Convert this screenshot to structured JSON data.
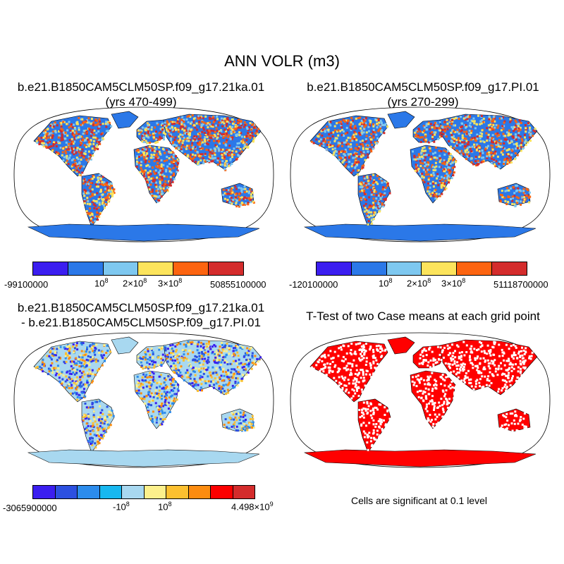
{
  "figure_title": "ANN VOLR (m3)",
  "panels": {
    "p1": {
      "title_line1": "b.e21.B1850CAM5CLM50SP.f09_g17.21ka.01",
      "title_line2": "(yrs 470-499)",
      "colorbar": {
        "colors": [
          "#3b1ef0",
          "#2b78e8",
          "#7ec8f0",
          "#fce45c",
          "#fc6410",
          "#d42c2c"
        ],
        "labels": [
          {
            "base": "-99100000",
            "exp": ""
          },
          {
            "base": "10",
            "exp": "8"
          },
          {
            "base": "2×10",
            "exp": "8"
          },
          {
            "base": "3×10",
            "exp": "8"
          },
          {
            "base": "50855100000",
            "exp": ""
          }
        ]
      }
    },
    "p2": {
      "title_line1": "b.e21.B1850CAM5CLM50SP.f09_g17.PI.01",
      "title_line2": "(yrs 270-299)",
      "colorbar": {
        "colors": [
          "#3b1ef0",
          "#2b78e8",
          "#7ec8f0",
          "#fce45c",
          "#fc6410",
          "#d42c2c"
        ],
        "labels": [
          {
            "base": "-120100000",
            "exp": ""
          },
          {
            "base": "10",
            "exp": "8"
          },
          {
            "base": "2×10",
            "exp": "8"
          },
          {
            "base": "3×10",
            "exp": "8"
          },
          {
            "base": "51118700000",
            "exp": ""
          }
        ]
      }
    },
    "p3": {
      "title_line1": "b.e21.B1850CAM5CLM50SP.f09_g17.21ka.01",
      "title_line2": "- b.e21.B1850CAM5CLM50SP.f09_g17.PI.01",
      "colorbar": {
        "colors": [
          "#3b1ef0",
          "#2c50e0",
          "#2c8cec",
          "#18b8f0",
          "#a8d8f0",
          "#fcf08c",
          "#fcc030",
          "#fc8c10",
          "#fc0000",
          "#d42c2c"
        ],
        "labels": [
          {
            "base": "-3065900000",
            "exp": ""
          },
          {
            "base": "-10",
            "exp": "8"
          },
          {
            "base": "10",
            "exp": "8"
          },
          {
            "base": "4.498×10",
            "exp": "9"
          }
        ]
      }
    },
    "p4": {
      "title": "T-Test of two Case means at each grid point",
      "note": "Cells are significant at 0.1 level",
      "sig_color": "#ff0000"
    }
  },
  "colors": {
    "ocean_bg": "#ffffff",
    "land_outline": "#000000",
    "p1_land": "#2b78e8",
    "p2_land": "#2b78e8",
    "p3_land": "#a8d8f0",
    "p4_land": "#ff0000"
  },
  "chart_data": [
    {
      "type": "heatmap",
      "title": "b.e21.B1850CAM5CLM50SP.f09_g17.21ka.01 (yrs 470-499)",
      "field": "ANN VOLR (m3)",
      "projection": "Robinson",
      "range": [
        -99100000,
        50855100000
      ],
      "colorbar_ticks": [
        "-99100000",
        "10^8",
        "2×10^8",
        "3×10^8",
        "50855100000"
      ]
    },
    {
      "type": "heatmap",
      "title": "b.e21.B1850CAM5CLM50SP.f09_g17.PI.01 (yrs 270-299)",
      "field": "ANN VOLR (m3)",
      "projection": "Robinson",
      "range": [
        -120100000,
        51118700000
      ],
      "colorbar_ticks": [
        "-120100000",
        "10^8",
        "2×10^8",
        "3×10^8",
        "51118700000"
      ]
    },
    {
      "type": "heatmap",
      "title": "b.e21.B1850CAM5CLM50SP.f09_g17.21ka.01 - b.e21.B1850CAM5CLM50SP.f09_g17.PI.01",
      "field": "ANN VOLR (m3)",
      "projection": "Robinson",
      "range": [
        -3065900000,
        4498000000
      ],
      "colorbar_ticks": [
        "-3065900000",
        "-10^8",
        "10^8",
        "4.498×10^9"
      ]
    },
    {
      "type": "heatmap",
      "title": "T-Test of two Case means at each grid point",
      "projection": "Robinson",
      "note": "Cells are significant at 0.1 level"
    }
  ]
}
